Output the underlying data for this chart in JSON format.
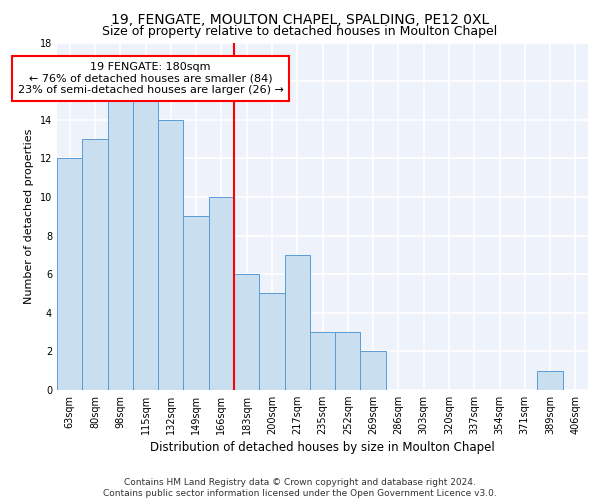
{
  "title1": "19, FENGATE, MOULTON CHAPEL, SPALDING, PE12 0XL",
  "title2": "Size of property relative to detached houses in Moulton Chapel",
  "xlabel": "Distribution of detached houses by size in Moulton Chapel",
  "ylabel": "Number of detached properties",
  "categories": [
    "63sqm",
    "80sqm",
    "98sqm",
    "115sqm",
    "132sqm",
    "149sqm",
    "166sqm",
    "183sqm",
    "200sqm",
    "217sqm",
    "235sqm",
    "252sqm",
    "269sqm",
    "286sqm",
    "303sqm",
    "320sqm",
    "337sqm",
    "354sqm",
    "371sqm",
    "389sqm",
    "406sqm"
  ],
  "values": [
    12,
    13,
    15,
    15,
    14,
    9,
    10,
    6,
    5,
    7,
    3,
    3,
    2,
    0,
    0,
    0,
    0,
    0,
    0,
    1,
    0
  ],
  "bar_color": "#c9dff0",
  "bar_edge_color": "#5b9bd5",
  "vline_x_index": 7,
  "annotation_text": "19 FENGATE: 180sqm\n← 76% of detached houses are smaller (84)\n23% of semi-detached houses are larger (26) →",
  "annotation_box_color": "white",
  "annotation_box_edge": "red",
  "vline_color": "red",
  "ylim": [
    0,
    18
  ],
  "yticks": [
    0,
    2,
    4,
    6,
    8,
    10,
    12,
    14,
    16,
    18
  ],
  "footer_text": "Contains HM Land Registry data © Crown copyright and database right 2024.\nContains public sector information licensed under the Open Government Licence v3.0.",
  "background_color": "#eef2fa",
  "grid_color": "white",
  "title1_fontsize": 10,
  "title2_fontsize": 9,
  "xlabel_fontsize": 8.5,
  "ylabel_fontsize": 8,
  "tick_fontsize": 7,
  "annotation_fontsize": 8,
  "footer_fontsize": 6.5
}
